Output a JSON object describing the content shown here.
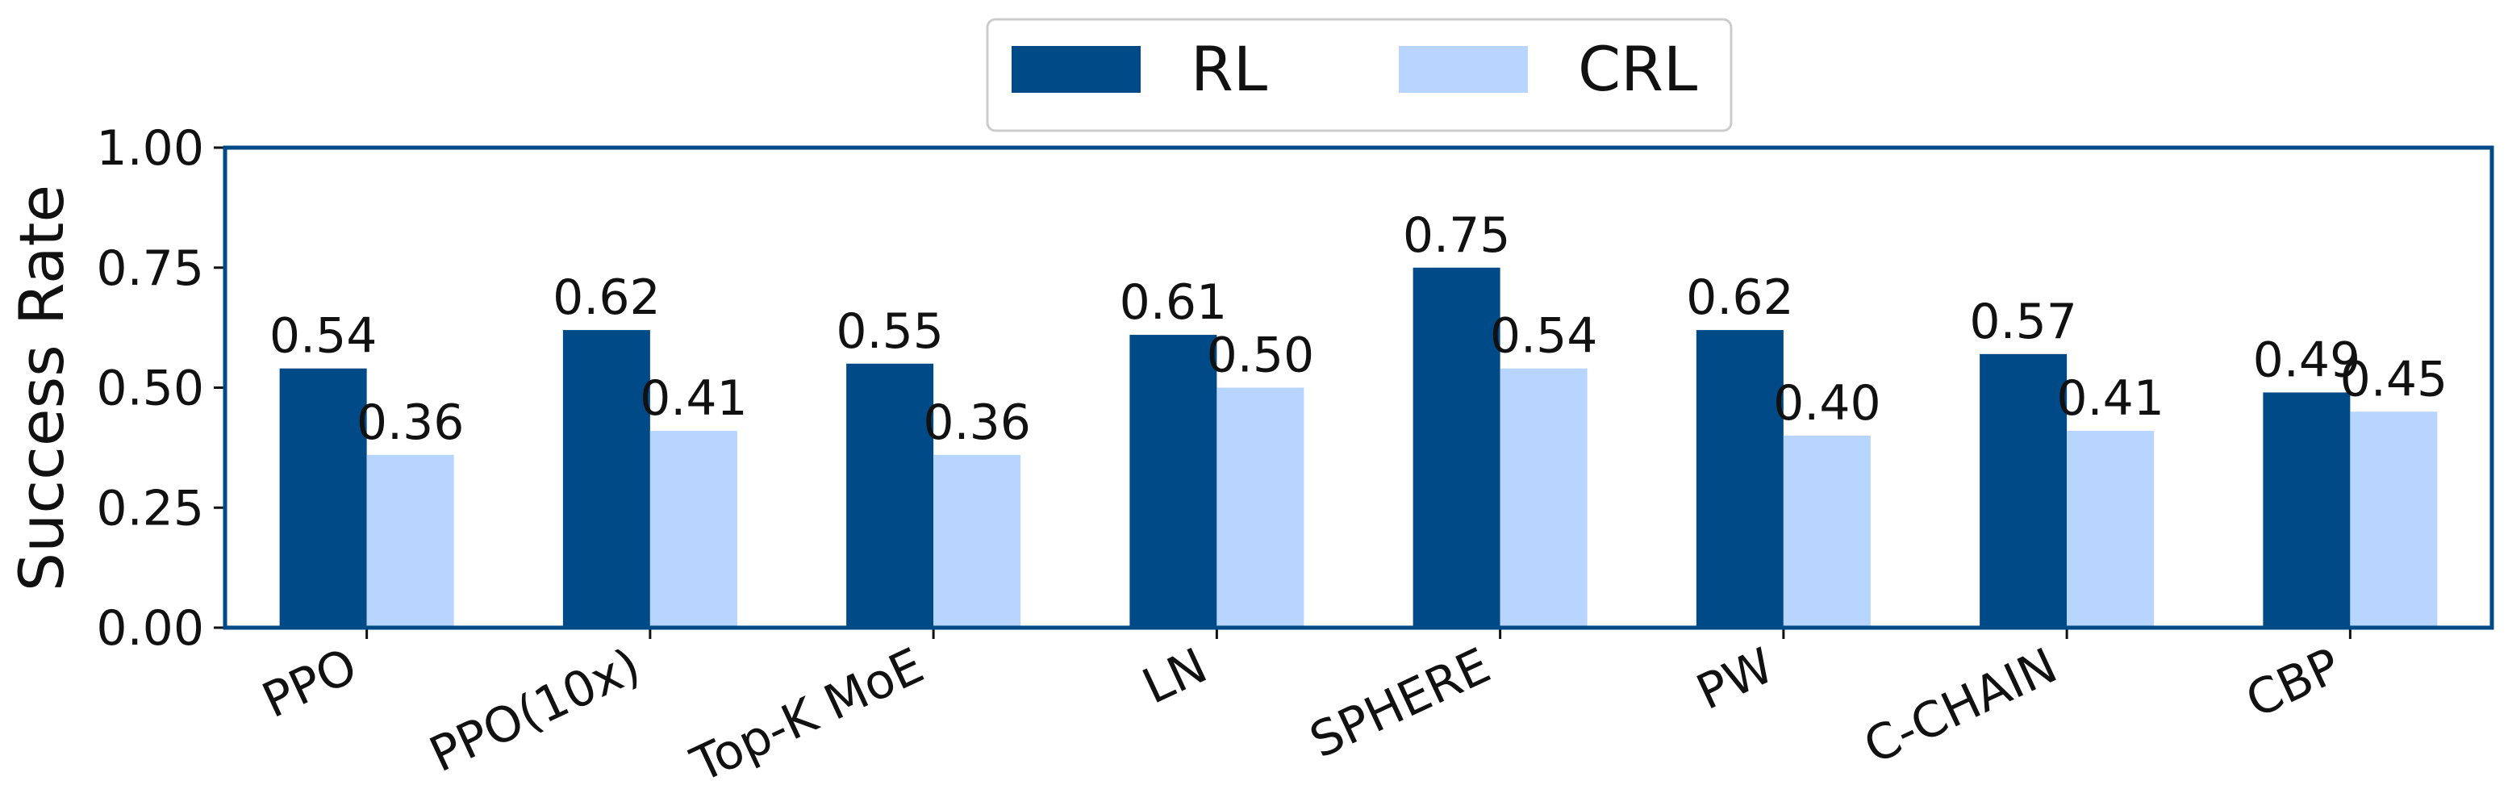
{
  "chart_data": {
    "type": "bar",
    "categories": [
      "PPO",
      "PPO(10x)",
      "Top-K MoE",
      "LN",
      "SPHERE",
      "PW",
      "C-CHAIN",
      "CBP"
    ],
    "series": [
      {
        "name": "RL",
        "values": [
          0.54,
          0.62,
          0.55,
          0.61,
          0.75,
          0.62,
          0.57,
          0.49
        ],
        "labels": [
          "0.54",
          "0.62",
          "0.55",
          "0.61",
          "0.75",
          "0.62",
          "0.57",
          "0.49"
        ],
        "color": "#004a87"
      },
      {
        "name": "CRL",
        "values": [
          0.36,
          0.41,
          0.36,
          0.5,
          0.54,
          0.4,
          0.41,
          0.45
        ],
        "labels": [
          "0.36",
          "0.41",
          "0.36",
          "0.50",
          "0.54",
          "0.40",
          "0.41",
          "0.45"
        ],
        "color": "#b7d5ff"
      }
    ],
    "title": "",
    "xlabel": "",
    "ylabel": "Success Rate",
    "ylim": [
      0,
      1
    ],
    "yticks": [
      "0.00",
      "0.25",
      "0.50",
      "0.75",
      "1.00"
    ],
    "grid": false,
    "legend_position": "top-center",
    "frame_color": "#004a87"
  }
}
